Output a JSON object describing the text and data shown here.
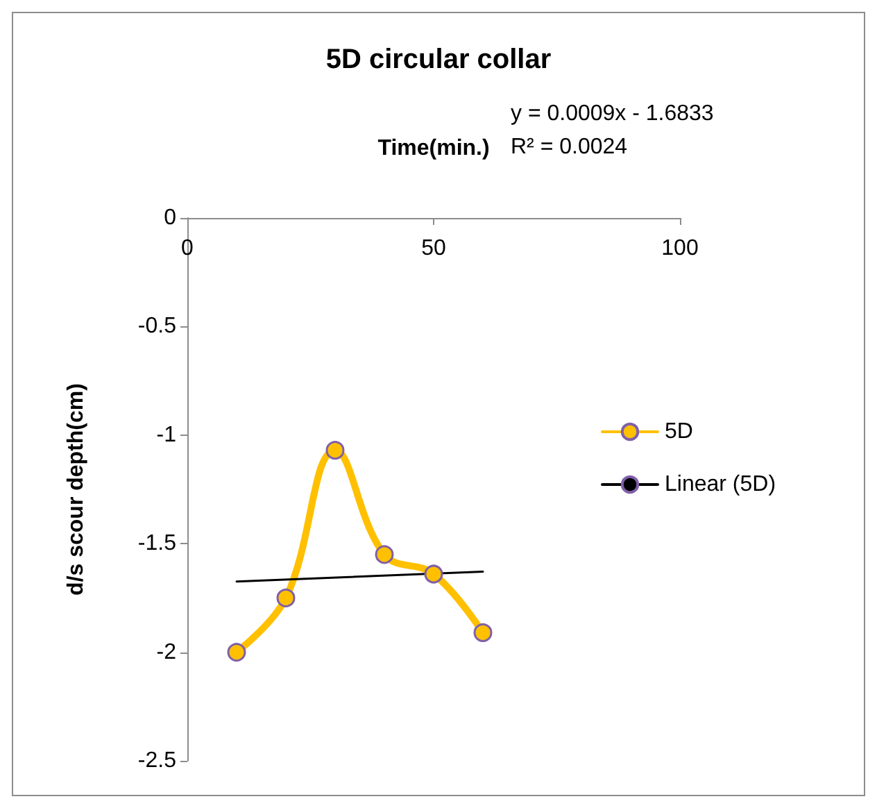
{
  "chart_data": {
    "type": "line",
    "title": "5D circular collar",
    "xlabel": "Time(min.)",
    "ylabel": "d/s scour depth(cm)",
    "x": [
      10,
      20,
      30,
      40,
      50,
      60
    ],
    "series": [
      {
        "name": "5D",
        "color": "#ffc000",
        "values": [
          -2.0,
          -1.75,
          -1.07,
          -1.55,
          -1.64,
          -1.91
        ]
      },
      {
        "name": "Linear (5D)",
        "type": "line",
        "color": "#000000",
        "marker": "none",
        "x": [
          10,
          60
        ],
        "values": [
          -1.674,
          -1.629
        ]
      }
    ],
    "xlim": [
      0,
      100
    ],
    "xticks": [
      0,
      50,
      100
    ],
    "ylim": [
      -2.5,
      0
    ],
    "yticks": [
      0,
      -0.5,
      -1,
      -1.5,
      -2,
      -2.5
    ],
    "grid": false,
    "legend": "right",
    "marker": "circle",
    "annotations": [
      "y = 0.0009x - 1.6833",
      "R² = 0.0024"
    ]
  }
}
